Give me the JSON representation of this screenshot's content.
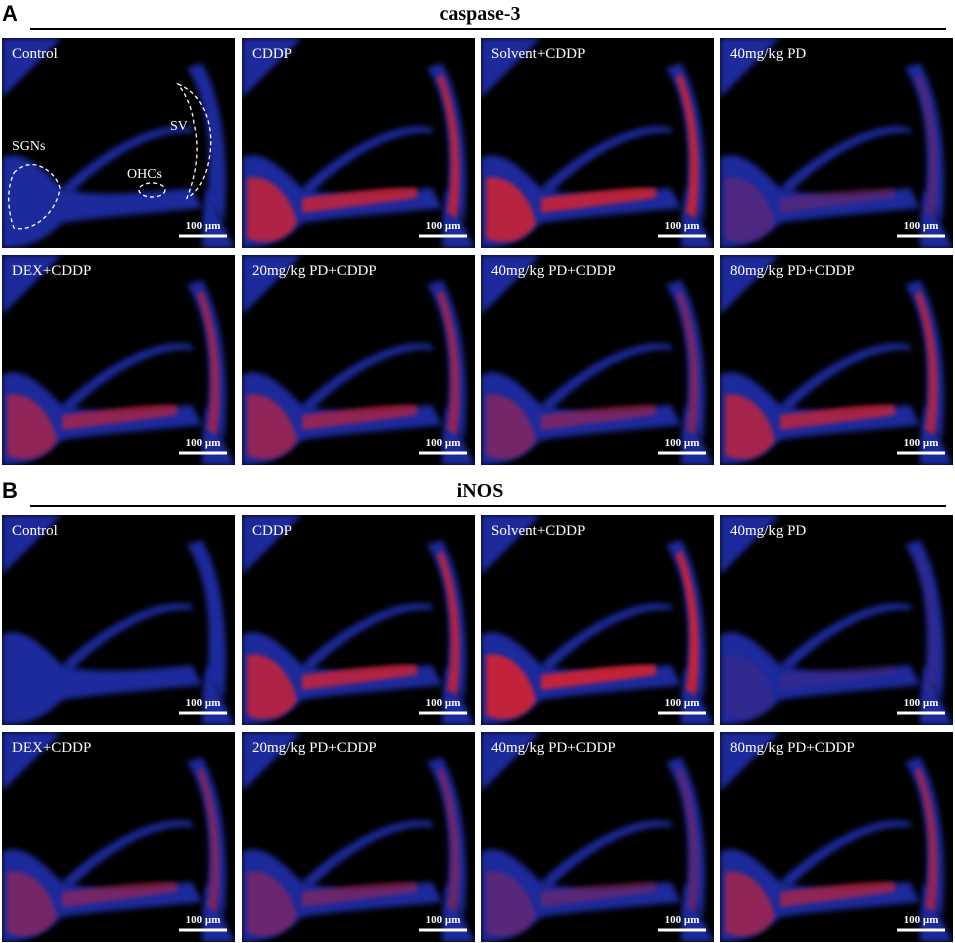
{
  "panels": [
    {
      "label": "A",
      "title": "caspase-3",
      "annotations": [
        "SGNs",
        "OHCs",
        "SV"
      ],
      "tiles": [
        {
          "label": "Control",
          "scale_bar": "100 µm"
        },
        {
          "label": "CDDP",
          "scale_bar": "100 µm"
        },
        {
          "label": "Solvent+CDDP",
          "scale_bar": "100 µm"
        },
        {
          "label": "40mg/kg PD",
          "scale_bar": "100 µm"
        },
        {
          "label": "DEX+CDDP",
          "scale_bar": "100 µm"
        },
        {
          "label": "20mg/kg PD+CDDP",
          "scale_bar": "100 µm"
        },
        {
          "label": "40mg/kg PD+CDDP",
          "scale_bar": "100 µm"
        },
        {
          "label": "80mg/kg PD+CDDP",
          "scale_bar": "100 µm"
        }
      ]
    },
    {
      "label": "B",
      "title": "iNOS",
      "tiles": [
        {
          "label": "Control",
          "scale_bar": "100 µm"
        },
        {
          "label": "CDDP",
          "scale_bar": "100 µm"
        },
        {
          "label": "Solvent+CDDP",
          "scale_bar": "100 µm"
        },
        {
          "label": "40mg/kg PD",
          "scale_bar": "100 µm"
        },
        {
          "label": "DEX+CDDP",
          "scale_bar": "100 µm"
        },
        {
          "label": "20mg/kg PD+CDDP",
          "scale_bar": "100 µm"
        },
        {
          "label": "40mg/kg PD+CDDP",
          "scale_bar": "100 µm"
        },
        {
          "label": "80mg/kg PD+CDDP",
          "scale_bar": "100 µm"
        }
      ]
    }
  ]
}
